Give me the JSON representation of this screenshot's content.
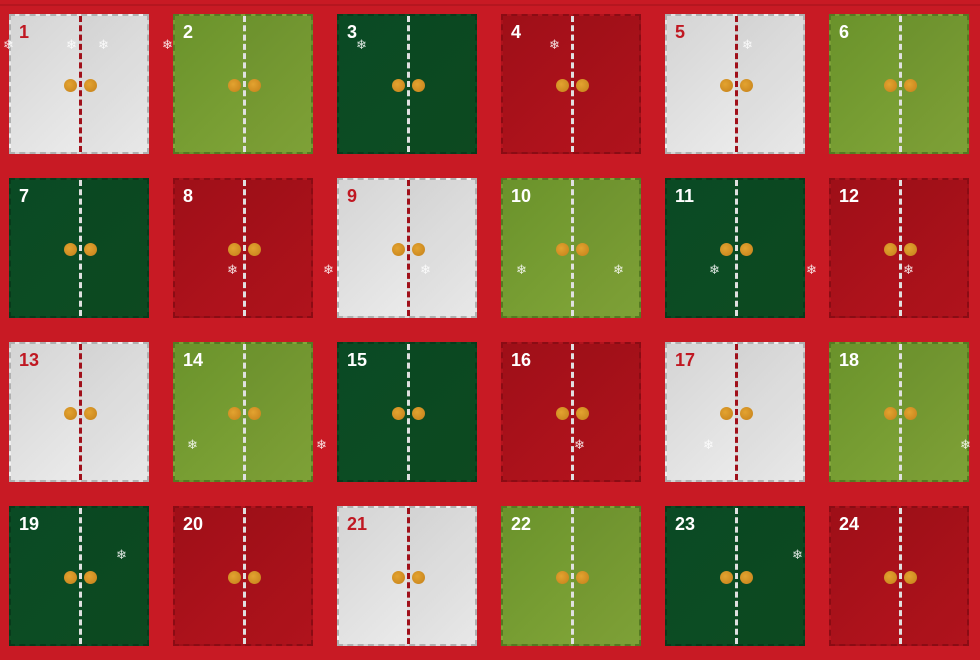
{
  "calendar": {
    "doors": [
      {
        "number": "1",
        "color": "white"
      },
      {
        "number": "2",
        "color": "green"
      },
      {
        "number": "3",
        "color": "dark"
      },
      {
        "number": "4",
        "color": "red"
      },
      {
        "number": "5",
        "color": "white"
      },
      {
        "number": "6",
        "color": "green"
      },
      {
        "number": "7",
        "color": "dark"
      },
      {
        "number": "8",
        "color": "red"
      },
      {
        "number": "9",
        "color": "white"
      },
      {
        "number": "10",
        "color": "green"
      },
      {
        "number": "11",
        "color": "dark"
      },
      {
        "number": "12",
        "color": "red"
      },
      {
        "number": "13",
        "color": "white"
      },
      {
        "number": "14",
        "color": "green"
      },
      {
        "number": "15",
        "color": "dark"
      },
      {
        "number": "16",
        "color": "red"
      },
      {
        "number": "17",
        "color": "white"
      },
      {
        "number": "18",
        "color": "green"
      },
      {
        "number": "19",
        "color": "dark"
      },
      {
        "number": "20",
        "color": "red"
      },
      {
        "number": "21",
        "color": "white"
      },
      {
        "number": "22",
        "color": "green"
      },
      {
        "number": "23",
        "color": "dark"
      },
      {
        "number": "24",
        "color": "red"
      }
    ],
    "colors": {
      "background": "#c81a24",
      "white": "#e6e6e6",
      "green": "#76a032",
      "dark": "#0c4a23",
      "red": "#ad121c",
      "knob": "#d8951f"
    },
    "snowflake_icon": "❄"
  }
}
